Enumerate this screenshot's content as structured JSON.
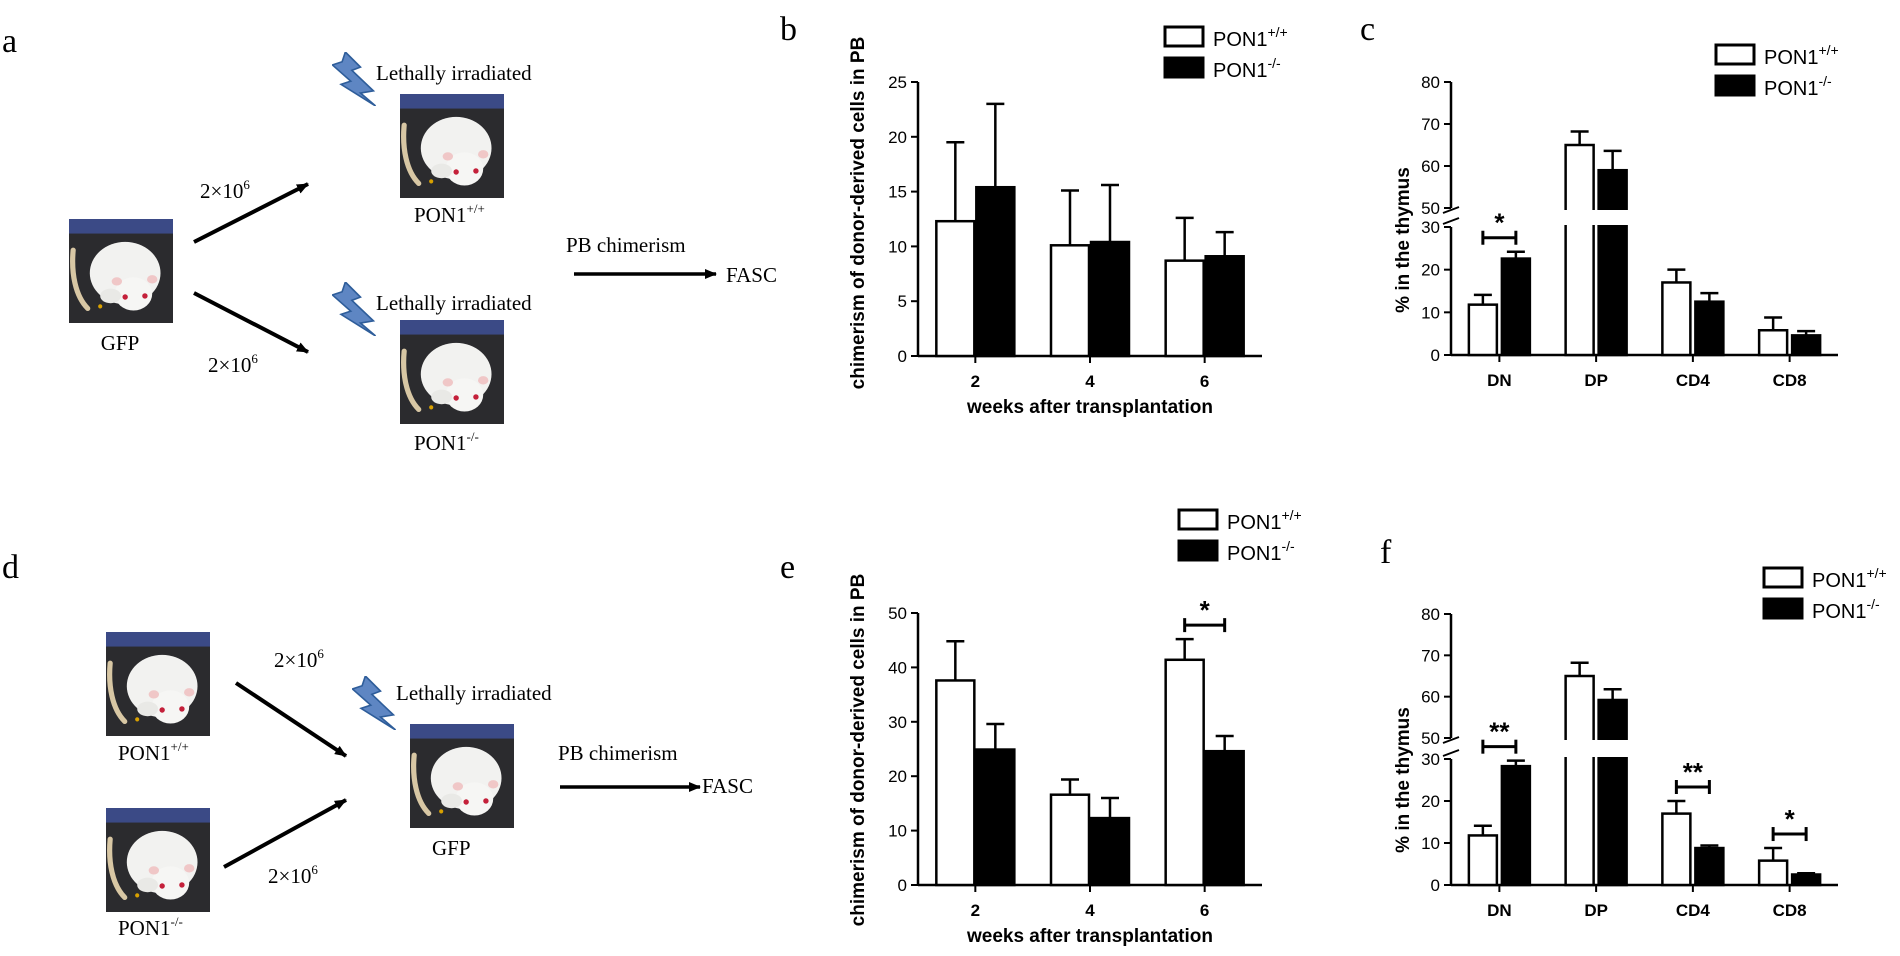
{
  "panels": {
    "a": "a",
    "b": "b",
    "c": "c",
    "d": "d",
    "e": "e",
    "f": "f"
  },
  "diagram_a": {
    "donor": "GFP",
    "dose_top": "2×10",
    "dose_bottom": "2×10",
    "dose_exp": "6",
    "irradiated_top": "Lethally irradiated",
    "irradiated_bottom": "Lethally irradiated",
    "recipient_top": "PON1",
    "recipient_top_sup": "+/+",
    "recipient_bottom": "PON1",
    "recipient_bottom_sup": "-/-",
    "readout": "PB chimerism",
    "method": "FASC"
  },
  "diagram_d": {
    "donor_top": "PON1",
    "donor_top_sup": "+/+",
    "donor_bottom": "PON1",
    "donor_bottom_sup": "-/-",
    "dose_top": "2×10",
    "dose_bottom": "2×10",
    "dose_exp": "6",
    "irradiated": "Lethally irradiated",
    "recipient": "GFP",
    "readout": "PB chimerism",
    "method": "FASC"
  },
  "legend": {
    "wt": "PON1",
    "wt_sup": "+/+",
    "ko": "PON1",
    "ko_sup": "-/-"
  },
  "colors": {
    "wt_fill": "#ffffff",
    "ko_fill": "#000000",
    "stroke": "#000000"
  },
  "chart_data": [
    {
      "id": "b",
      "type": "bar",
      "title": "",
      "xlabel": "weeks after transplantation",
      "ylabel": "chimerism of donor-derived cells in PB",
      "categories": [
        "2",
        "4",
        "6"
      ],
      "ylim": [
        0,
        25
      ],
      "yticks": [
        0,
        5,
        10,
        15,
        20,
        25
      ],
      "series": [
        {
          "name": "PON1+/+",
          "values": [
            12.3,
            10.1,
            8.7
          ],
          "errors": [
            7.2,
            5.0,
            3.9
          ]
        },
        {
          "name": "PON1-/-",
          "values": [
            15.4,
            10.4,
            9.1
          ],
          "errors": [
            7.6,
            5.2,
            2.2
          ]
        }
      ],
      "significance": [],
      "legend_position": "top-right"
    },
    {
      "id": "c",
      "type": "bar",
      "title": "",
      "xlabel": "",
      "ylabel": "% in the thymus",
      "categories": [
        "DN",
        "DP",
        "CD4",
        "CD8"
      ],
      "axis_break": {
        "lower": [
          0,
          30
        ],
        "upper": [
          50,
          80
        ]
      },
      "yticks_lower": [
        0,
        10,
        20,
        30
      ],
      "yticks_upper": [
        50,
        60,
        70,
        80
      ],
      "series": [
        {
          "name": "PON1+/+",
          "values": [
            11.8,
            65.0,
            17.0,
            5.8
          ],
          "errors": [
            2.3,
            3.2,
            3.0,
            3.0
          ]
        },
        {
          "name": "PON1-/-",
          "values": [
            22.6,
            59.0,
            12.5,
            4.6
          ],
          "errors": [
            1.6,
            4.6,
            2.0,
            1.0
          ]
        }
      ],
      "significance": [
        {
          "category": 0,
          "label": "*"
        }
      ],
      "legend_position": "top-right"
    },
    {
      "id": "e",
      "type": "bar",
      "title": "",
      "xlabel": "weeks after transplantation",
      "ylabel": "chimerism of donor-derived cells in PB",
      "categories": [
        "2",
        "4",
        "6"
      ],
      "ylim": [
        0,
        50
      ],
      "yticks": [
        0,
        10,
        20,
        30,
        40,
        50
      ],
      "series": [
        {
          "name": "PON1+/+",
          "values": [
            37.6,
            16.6,
            41.4
          ],
          "errors": [
            7.2,
            2.8,
            3.8
          ]
        },
        {
          "name": "PON1-/-",
          "values": [
            24.9,
            12.3,
            24.6
          ],
          "errors": [
            4.7,
            3.7,
            2.8
          ]
        }
      ],
      "significance": [
        {
          "category": 2,
          "label": "*"
        }
      ],
      "legend_position": "top-right"
    },
    {
      "id": "f",
      "type": "bar",
      "title": "",
      "xlabel": "",
      "ylabel": "% in the thymus",
      "categories": [
        "DN",
        "DP",
        "CD4",
        "CD8"
      ],
      "axis_break": {
        "lower": [
          0,
          30
        ],
        "upper": [
          50,
          80
        ]
      },
      "yticks_lower": [
        0,
        10,
        20,
        30
      ],
      "yticks_upper": [
        50,
        60,
        70,
        80
      ],
      "series": [
        {
          "name": "PON1+/+",
          "values": [
            11.8,
            65.0,
            17.0,
            5.8
          ],
          "errors": [
            2.3,
            3.2,
            3.0,
            3.0
          ]
        },
        {
          "name": "PON1-/-",
          "values": [
            28.3,
            59.2,
            8.8,
            2.5
          ],
          "errors": [
            1.3,
            2.6,
            0.6,
            0.3
          ]
        }
      ],
      "significance": [
        {
          "category": 0,
          "label": "**"
        },
        {
          "category": 2,
          "label": "**"
        },
        {
          "category": 3,
          "label": "*"
        }
      ],
      "legend_position": "top-right"
    }
  ]
}
